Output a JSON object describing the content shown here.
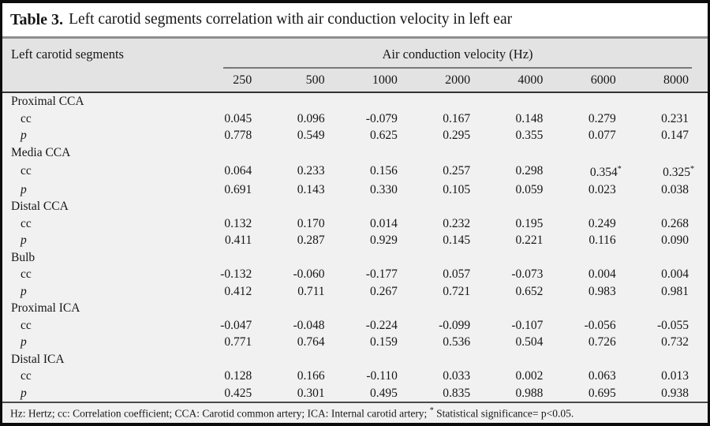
{
  "title": {
    "label": "Table 3.",
    "text": "Left carotid segments correlation with air conduction velocity in left ear"
  },
  "table": {
    "row_header": "Left carotid segments",
    "col_group_header": "Air conduction velocity (Hz)",
    "frequencies": [
      "250",
      "500",
      "1000",
      "2000",
      "4000",
      "6000",
      "8000"
    ],
    "row_labels": {
      "cc": "cc",
      "p": "p"
    },
    "segments": [
      {
        "name": "Proximal CCA",
        "cc": [
          "0.045",
          "0.096",
          "-0.079",
          "0.167",
          "0.148",
          "0.279",
          "0.231"
        ],
        "p": [
          "0.778",
          "0.549",
          "0.625",
          "0.295",
          "0.355",
          "0.077",
          "0.147"
        ]
      },
      {
        "name": "Media CCA",
        "cc": [
          "0.064",
          "0.233",
          "0.156",
          "0.257",
          "0.298",
          "0.354*",
          "0.325*"
        ],
        "p": [
          "0.691",
          "0.143",
          "0.330",
          "0.105",
          "0.059",
          "0.023",
          "0.038"
        ]
      },
      {
        "name": "Distal CCA",
        "cc": [
          "0.132",
          "0.170",
          "0.014",
          "0.232",
          "0.195",
          "0.249",
          "0.268"
        ],
        "p": [
          "0.411",
          "0.287",
          "0.929",
          "0.145",
          "0.221",
          "0.116",
          "0.090"
        ]
      },
      {
        "name": "Bulb",
        "cc": [
          "-0.132",
          "-0.060",
          "-0.177",
          "0.057",
          "-0.073",
          "0.004",
          "0.004"
        ],
        "p": [
          "0.412",
          "0.711",
          "0.267",
          "0.721",
          "0.652",
          "0.983",
          "0.981"
        ]
      },
      {
        "name": "Proximal ICA",
        "cc": [
          "-0.047",
          "-0.048",
          "-0.224",
          "-0.099",
          "-0.107",
          "-0.056",
          "-0.055"
        ],
        "p": [
          "0.771",
          "0.764",
          "0.159",
          "0.536",
          "0.504",
          "0.726",
          "0.732"
        ]
      },
      {
        "name": "Distal ICA",
        "cc": [
          "0.128",
          "0.166",
          "-0.110",
          "0.033",
          "0.002",
          "0.063",
          "0.013"
        ],
        "p": [
          "0.425",
          "0.301",
          "0.495",
          "0.835",
          "0.988",
          "0.695",
          "0.938"
        ]
      }
    ]
  },
  "footnote": {
    "part1": "Hz: Hertz; cc: Correlation coefficient; CCA: Carotid common artery; ICA: Internal carotid artery; ",
    "star": "*",
    "part2": " Statistical significance= p<0.05."
  },
  "colors": {
    "frame_border": "#0c0c0c",
    "title_bg": "#ffffff",
    "header_bg": "#e3e3e3",
    "body_bg": "#f1f1f1",
    "divider_light_gray": "#8e8e8e",
    "divider_dark": "#333333",
    "group_underline": "#787878",
    "text": "#161616"
  }
}
